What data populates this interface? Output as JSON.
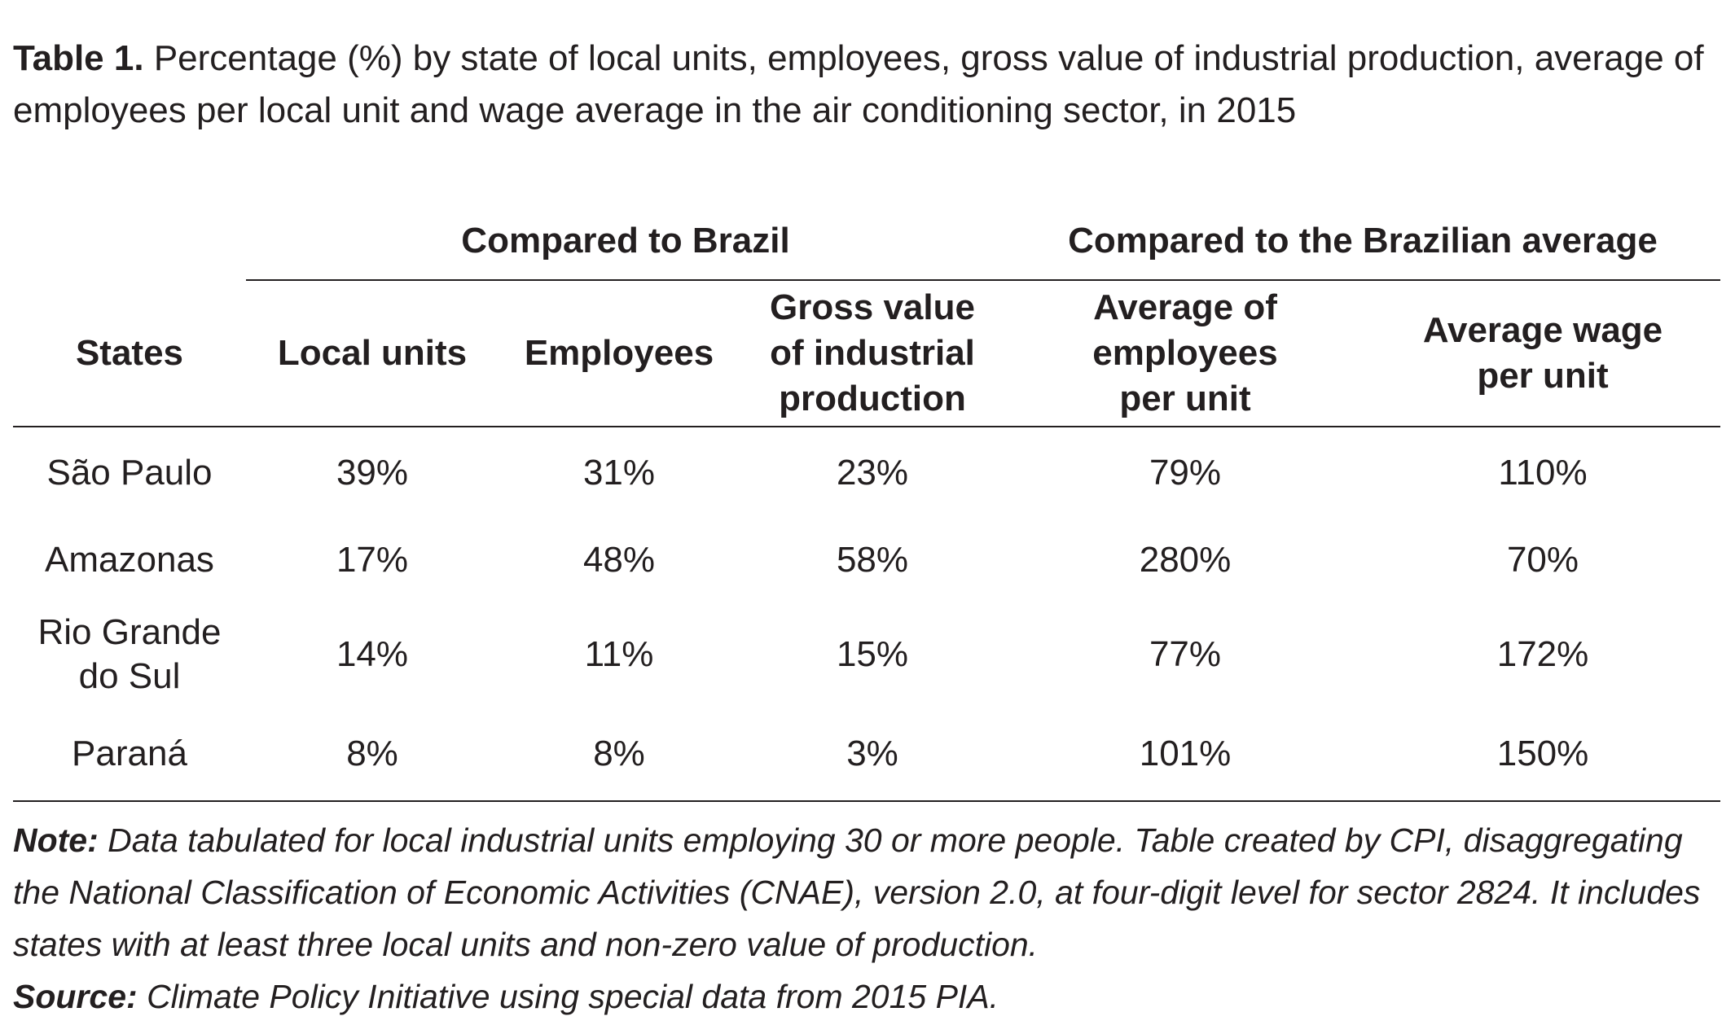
{
  "caption": {
    "label": "Table 1.",
    "text": "Percentage (%) by state of local units, employees, gross value of industrial production, average of employees per local unit and wage average in the air conditioning sector, in 2015"
  },
  "table": {
    "groups": [
      {
        "label": "Compared to Brazil"
      },
      {
        "label": "Compared to the Brazilian average"
      }
    ],
    "columns": [
      {
        "label": "States"
      },
      {
        "label": "Local units"
      },
      {
        "label": "Employees"
      },
      {
        "label_lines": [
          "Gross value",
          "of industrial",
          "production"
        ]
      },
      {
        "label_lines": [
          "Average of",
          "employees",
          "per unit"
        ]
      },
      {
        "label_lines": [
          "Average wage",
          "per unit"
        ]
      }
    ],
    "rows": [
      {
        "state_lines": [
          "São Paulo"
        ],
        "local_units": "39%",
        "employees": "31%",
        "gross_value": "23%",
        "avg_employees": "79%",
        "avg_wage": "110%"
      },
      {
        "state_lines": [
          "Amazonas"
        ],
        "local_units": "17%",
        "employees": "48%",
        "gross_value": "58%",
        "avg_employees": "280%",
        "avg_wage": "70%"
      },
      {
        "state_lines": [
          "Rio Grande",
          "do Sul"
        ],
        "local_units": "14%",
        "employees": "11%",
        "gross_value": "15%",
        "avg_employees": "77%",
        "avg_wage": "172%"
      },
      {
        "state_lines": [
          "Paraná"
        ],
        "local_units": "8%",
        "employees": "8%",
        "gross_value": "3%",
        "avg_employees": "101%",
        "avg_wage": "150%"
      }
    ]
  },
  "note": {
    "label": "Note:",
    "text": "Data tabulated for local industrial units employing 30 or more people. Table created by CPI, disaggregating the National Classification of Economic Activities (CNAE), version 2.0, at four-digit level for sector 2824. It includes states with at least three local units and non-zero value of production."
  },
  "source": {
    "label": "Source:",
    "text": "Climate Policy Initiative using special data from 2015 PIA."
  }
}
